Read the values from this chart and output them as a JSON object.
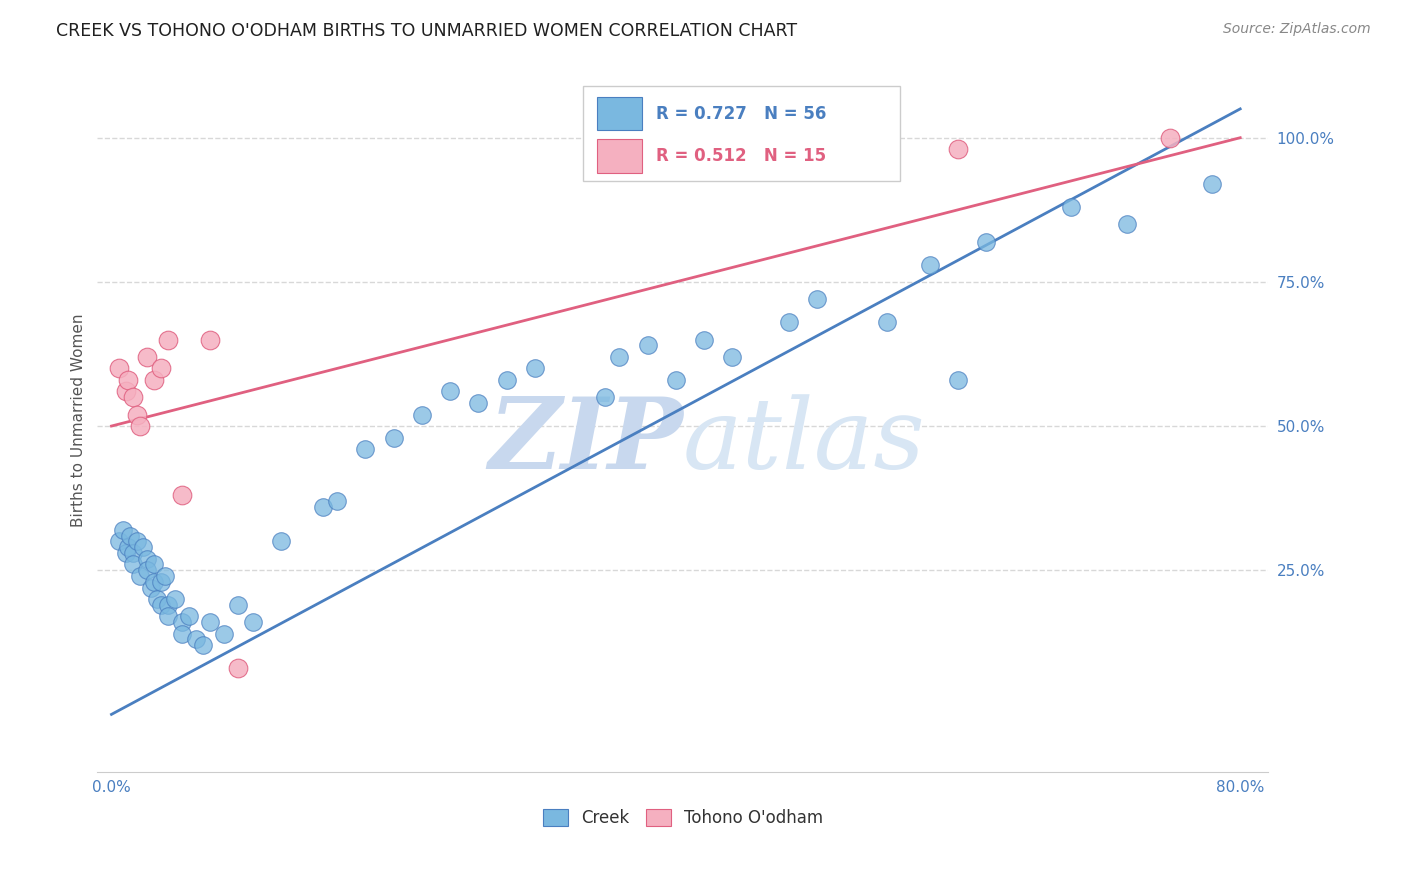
{
  "title": "CREEK VS TOHONO O'ODHAM BIRTHS TO UNMARRIED WOMEN CORRELATION CHART",
  "source": "Source: ZipAtlas.com",
  "ylabel": "Births to Unmarried Women",
  "xlim": [
    -0.01,
    0.82
  ],
  "ylim": [
    -0.1,
    1.12
  ],
  "xticks": [
    0.0,
    0.2,
    0.4,
    0.6,
    0.8
  ],
  "xtick_labels": [
    "0.0%",
    "",
    "",
    "",
    "80.0%"
  ],
  "yticks": [
    0.25,
    0.5,
    0.75,
    1.0
  ],
  "ytick_labels": [
    "25.0%",
    "50.0%",
    "75.0%",
    "100.0%"
  ],
  "creek_color": "#7ab8e0",
  "tohono_color": "#f5b0c0",
  "creek_line_color": "#4a7fc0",
  "tohono_line_color": "#e06080",
  "creek_R": 0.727,
  "creek_N": 56,
  "tohono_R": 0.512,
  "tohono_N": 15,
  "watermark_zip": "ZIP",
  "watermark_atlas": "atlas",
  "watermark_color": "#d5e4f5",
  "background_color": "#ffffff",
  "grid_color": "#d8d8d8",
  "title_color": "#202020",
  "axis_label_color": "#555555",
  "tick_color": "#4a7fc0",
  "source_color": "#888888",
  "creek_points_x": [
    0.005,
    0.008,
    0.01,
    0.012,
    0.013,
    0.015,
    0.015,
    0.018,
    0.02,
    0.022,
    0.025,
    0.025,
    0.028,
    0.03,
    0.03,
    0.032,
    0.035,
    0.035,
    0.038,
    0.04,
    0.04,
    0.045,
    0.05,
    0.05,
    0.055,
    0.06,
    0.065,
    0.07,
    0.08,
    0.09,
    0.1,
    0.12,
    0.15,
    0.16,
    0.18,
    0.2,
    0.22,
    0.24,
    0.26,
    0.28,
    0.3,
    0.35,
    0.36,
    0.38,
    0.4,
    0.42,
    0.44,
    0.48,
    0.5,
    0.55,
    0.58,
    0.6,
    0.62,
    0.68,
    0.72,
    0.78
  ],
  "creek_points_y": [
    0.3,
    0.32,
    0.28,
    0.29,
    0.31,
    0.28,
    0.26,
    0.3,
    0.24,
    0.29,
    0.27,
    0.25,
    0.22,
    0.26,
    0.23,
    0.2,
    0.23,
    0.19,
    0.24,
    0.19,
    0.17,
    0.2,
    0.16,
    0.14,
    0.17,
    0.13,
    0.12,
    0.16,
    0.14,
    0.19,
    0.16,
    0.3,
    0.36,
    0.37,
    0.46,
    0.48,
    0.52,
    0.56,
    0.54,
    0.58,
    0.6,
    0.55,
    0.62,
    0.64,
    0.58,
    0.65,
    0.62,
    0.68,
    0.72,
    0.68,
    0.78,
    0.58,
    0.82,
    0.88,
    0.85,
    0.92
  ],
  "tohono_points_x": [
    0.005,
    0.01,
    0.012,
    0.015,
    0.018,
    0.02,
    0.025,
    0.03,
    0.035,
    0.04,
    0.05,
    0.07,
    0.09,
    0.6,
    0.75
  ],
  "tohono_points_y": [
    0.6,
    0.56,
    0.58,
    0.55,
    0.52,
    0.5,
    0.62,
    0.58,
    0.6,
    0.65,
    0.38,
    0.65,
    0.08,
    0.98,
    1.0
  ],
  "creek_line_x": [
    0.0,
    0.8
  ],
  "creek_line_y": [
    0.0,
    1.05
  ],
  "tohono_line_x": [
    0.0,
    0.8
  ],
  "tohono_line_y": [
    0.5,
    1.0
  ]
}
